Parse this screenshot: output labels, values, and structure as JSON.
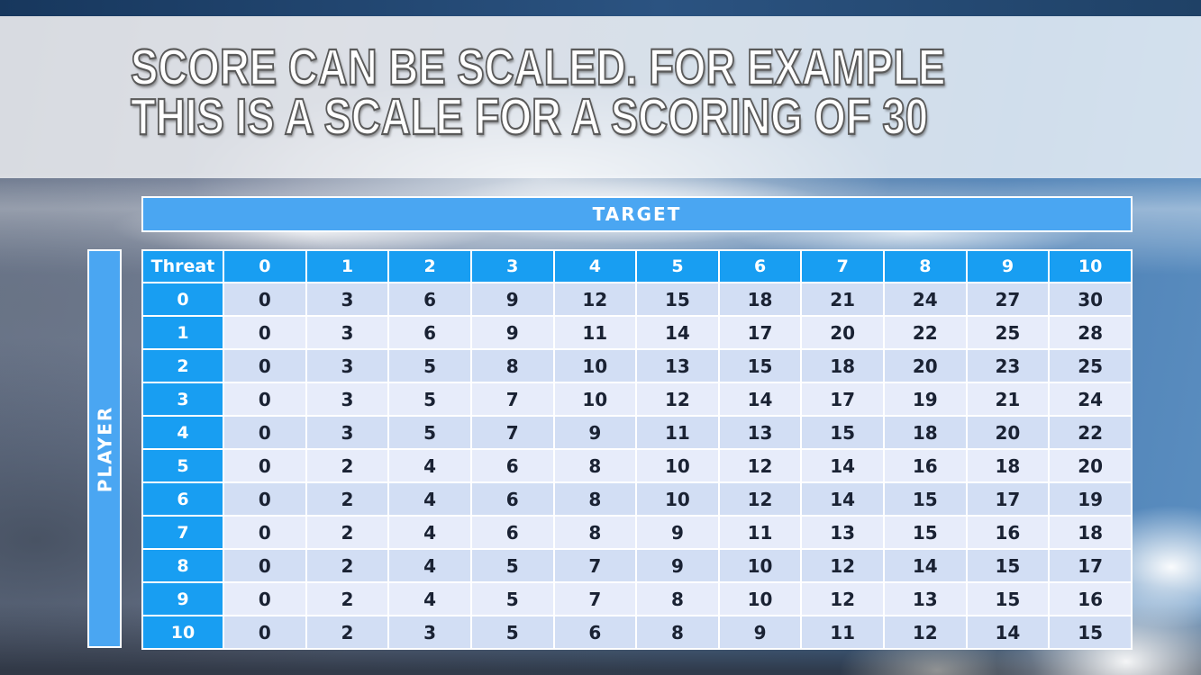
{
  "slide": {
    "title_line1": "SCORE CAN BE SCALED. FOR EXAMPLE",
    "title_line2": "THIS IS A SCALE FOR A SCORING OF 30"
  },
  "table": {
    "target_label": "TARGET",
    "player_label": "PLAYER",
    "corner_label": "Threat",
    "column_headers": [
      "0",
      "1",
      "2",
      "3",
      "4",
      "5",
      "6",
      "7",
      "8",
      "9",
      "10"
    ],
    "row_headers": [
      "0",
      "1",
      "2",
      "3",
      "4",
      "5",
      "6",
      "7",
      "8",
      "9",
      "10"
    ],
    "rows": [
      [
        0,
        3,
        6,
        9,
        12,
        15,
        18,
        21,
        24,
        27,
        30
      ],
      [
        0,
        3,
        6,
        9,
        11,
        14,
        17,
        20,
        22,
        25,
        28
      ],
      [
        0,
        3,
        5,
        8,
        10,
        13,
        15,
        18,
        20,
        23,
        25
      ],
      [
        0,
        3,
        5,
        7,
        10,
        12,
        14,
        17,
        19,
        21,
        24
      ],
      [
        0,
        3,
        5,
        7,
        9,
        11,
        13,
        15,
        18,
        20,
        22
      ],
      [
        0,
        2,
        4,
        6,
        8,
        10,
        12,
        14,
        16,
        18,
        20
      ],
      [
        0,
        2,
        4,
        6,
        8,
        10,
        12,
        14,
        15,
        17,
        19
      ],
      [
        0,
        2,
        4,
        6,
        8,
        9,
        11,
        13,
        15,
        16,
        18
      ],
      [
        0,
        2,
        4,
        5,
        7,
        9,
        10,
        12,
        14,
        15,
        17
      ],
      [
        0,
        2,
        4,
        5,
        7,
        8,
        10,
        12,
        13,
        15,
        16
      ],
      [
        0,
        2,
        3,
        5,
        6,
        8,
        9,
        11,
        12,
        14,
        15
      ]
    ]
  },
  "colors": {
    "band_blue": "#4AA6F2",
    "header_blue": "#189EF2",
    "row_a": "#D2DEF4",
    "row_b": "#E7ECFA",
    "body_text": "#1A2233"
  }
}
